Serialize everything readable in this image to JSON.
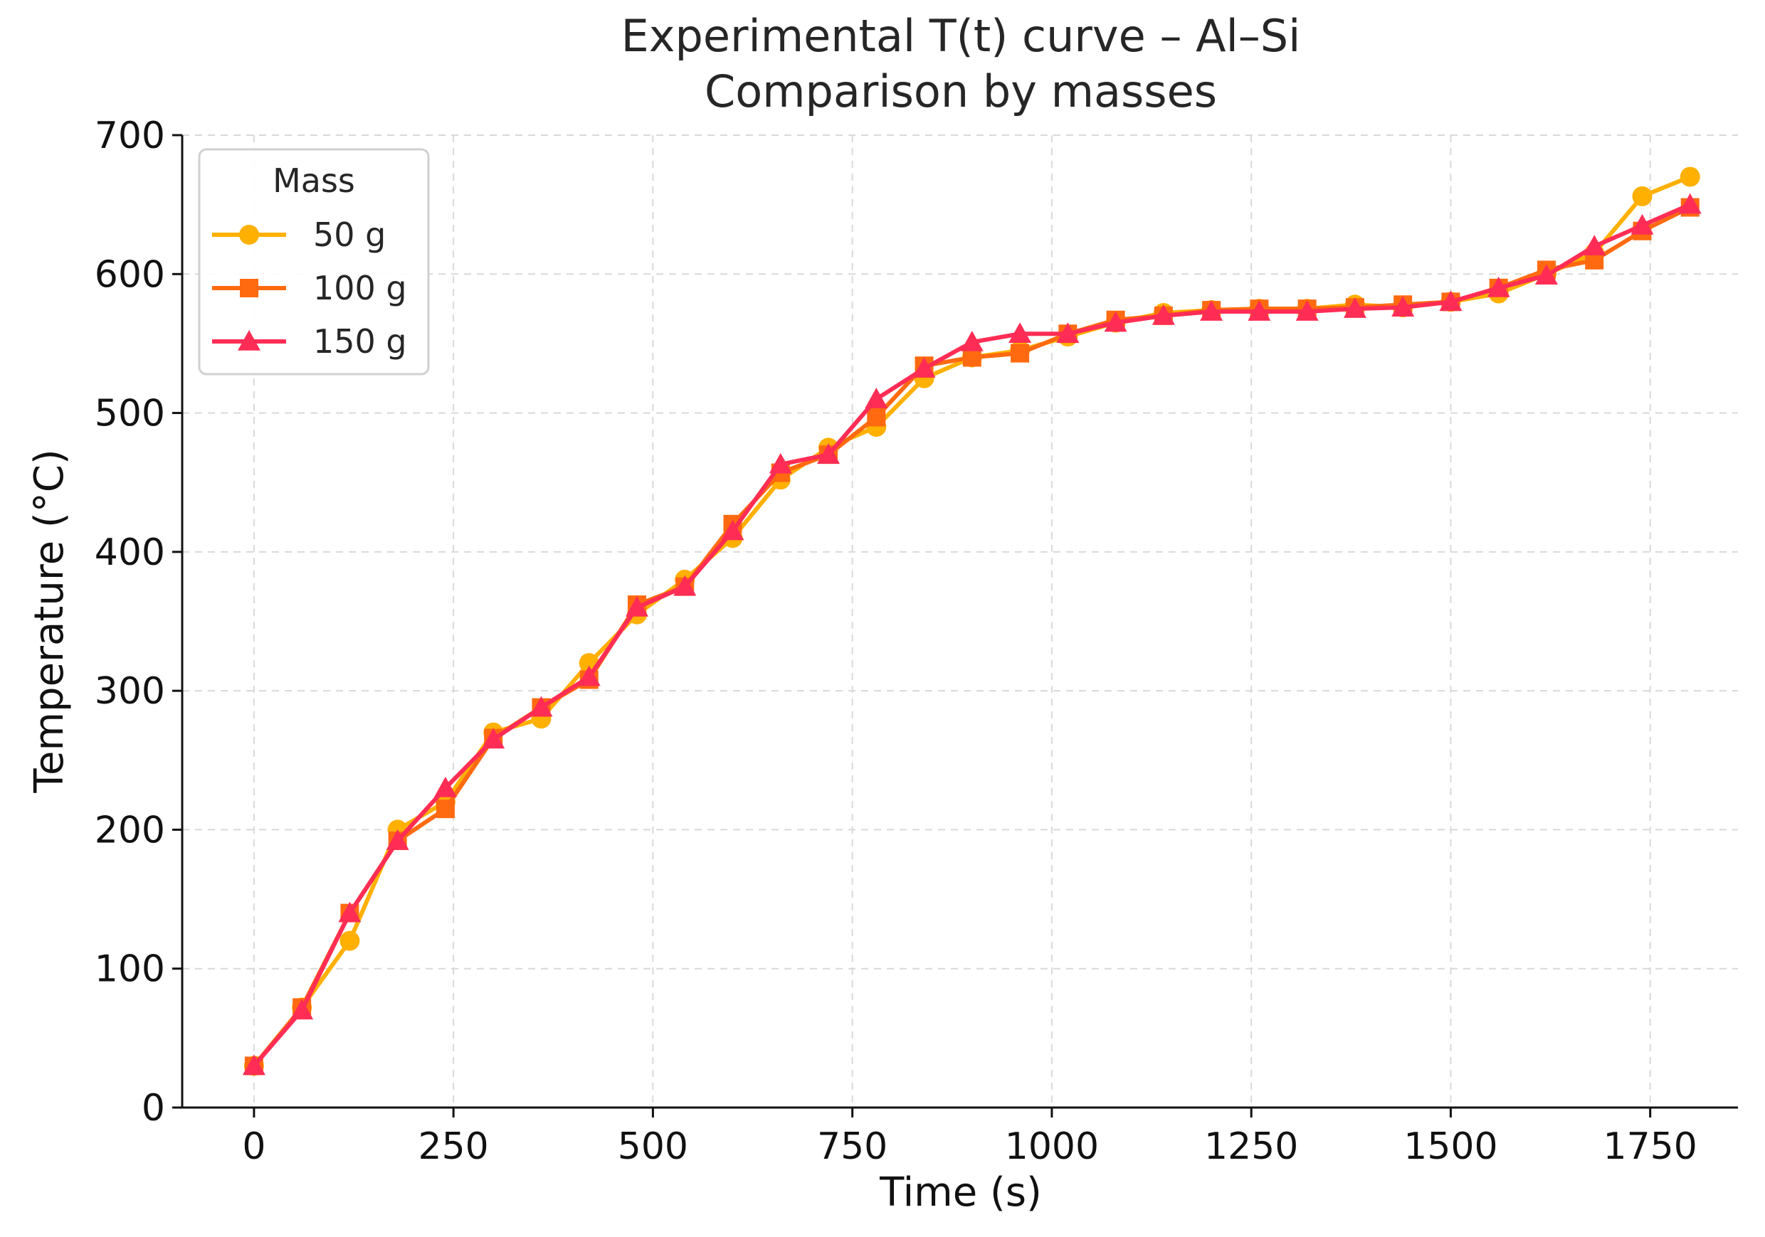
{
  "chart_data": {
    "type": "line",
    "title": "Experimental T(t) curve – Al–Si",
    "subtitle": "Comparison by masses",
    "xlabel": "Time (s)",
    "ylabel": "Temperature (°C)",
    "xlim": [
      -90,
      1860
    ],
    "ylim": [
      0,
      700
    ],
    "xticks": [
      0,
      250,
      500,
      750,
      1000,
      1250,
      1500,
      1750
    ],
    "yticks": [
      0,
      100,
      200,
      300,
      400,
      500,
      600,
      700
    ],
    "xtick_labels": [
      "0",
      "250",
      "500",
      "750",
      "1000",
      "1250",
      "1500",
      "1750"
    ],
    "ytick_labels": [
      "0",
      "100",
      "200",
      "300",
      "400",
      "500",
      "600",
      "700"
    ],
    "grid": true,
    "legend": {
      "title": "Mass",
      "position": "top-left"
    },
    "x": [
      0,
      60,
      120,
      180,
      240,
      300,
      360,
      420,
      480,
      540,
      600,
      660,
      720,
      780,
      840,
      900,
      960,
      1020,
      1080,
      1140,
      1200,
      1260,
      1320,
      1380,
      1440,
      1500,
      1560,
      1620,
      1680,
      1740,
      1800
    ],
    "series": [
      {
        "name": "50 g",
        "color": "#FFB000",
        "marker": "circle",
        "values": [
          30,
          72,
          120,
          200,
          220,
          270,
          280,
          320,
          355,
          380,
          410,
          452,
          475,
          490,
          525,
          540,
          545,
          555,
          565,
          572,
          574,
          575,
          575,
          578,
          576,
          580,
          586,
          600,
          615,
          656,
          670
        ]
      },
      {
        "name": "100 g",
        "color": "#FF6A10",
        "marker": "square",
        "values": [
          30,
          72,
          140,
          192,
          215,
          266,
          288,
          308,
          362,
          375,
          420,
          457,
          470,
          497,
          534,
          540,
          543,
          557,
          567,
          570,
          574,
          575,
          575,
          576,
          578,
          580,
          590,
          603,
          610,
          631,
          648
        ]
      },
      {
        "name": "150 g",
        "color": "#FF2D55",
        "marker": "triangle",
        "values": [
          30,
          70,
          140,
          192,
          230,
          265,
          288,
          310,
          360,
          375,
          415,
          463,
          470,
          510,
          532,
          551,
          557,
          557,
          565,
          570,
          573,
          573,
          573,
          575,
          576,
          580,
          590,
          599,
          620,
          635,
          650
        ]
      }
    ]
  }
}
